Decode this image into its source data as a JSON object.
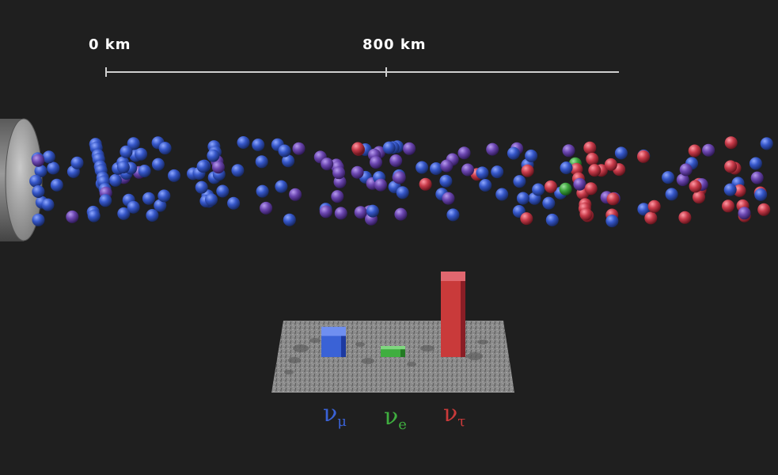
{
  "scale": {
    "start_label": "0 km",
    "mid_label": "800 km"
  },
  "flavors": [
    {
      "name": "muon",
      "symbol": "ν",
      "subscript": "μ",
      "color": "#3a62d6",
      "relative_count": 0.24
    },
    {
      "name": "electron",
      "symbol": "ν",
      "subscript": "e",
      "color": "#3fae3f",
      "relative_count": 0.08
    },
    {
      "name": "tau",
      "symbol": "ν",
      "subscript": "τ",
      "color": "#c93a3a",
      "relative_count": 0.68
    }
  ],
  "particle_colors": {
    "muon": "#3556c8",
    "mixed": "#6b46b0",
    "electron": "#3da43d",
    "tau": "#c83b4a"
  }
}
